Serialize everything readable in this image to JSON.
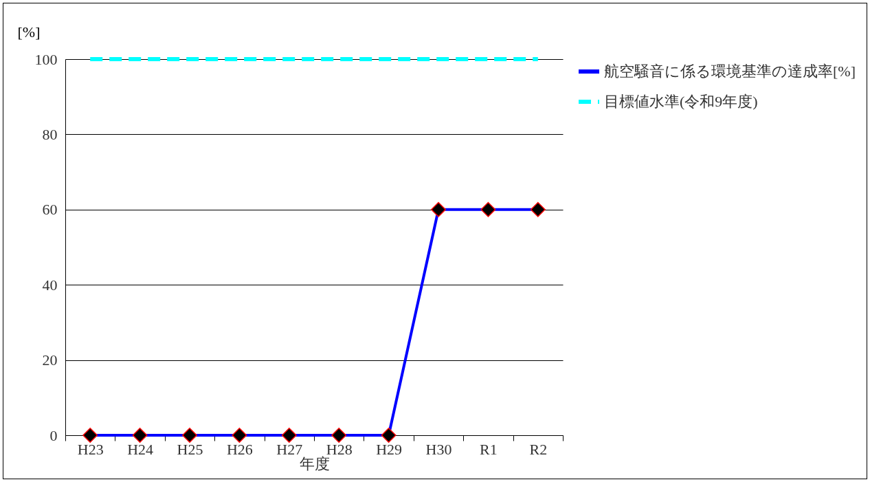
{
  "chart_data": {
    "type": "line",
    "xlabel": "年度",
    "ylabel": "[%]",
    "categories": [
      "H23",
      "H24",
      "H25",
      "H26",
      "H27",
      "H28",
      "H29",
      "H30",
      "R1",
      "R2"
    ],
    "series": [
      {
        "name": "航空騒音に係る環境基準の達成率[%]",
        "color": "#0000ff",
        "marker": "diamond",
        "line_style": "solid",
        "values": [
          0,
          0,
          0,
          0,
          0,
          0,
          0,
          60,
          60,
          60
        ]
      },
      {
        "name": "目標値水準(令和9年度)",
        "color": "#00ffff",
        "marker": "none",
        "line_style": "dashed",
        "values": [
          100,
          100,
          100,
          100,
          100,
          100,
          100,
          100,
          100,
          100
        ]
      }
    ],
    "ylim": [
      0,
      100
    ],
    "yticks": [
      0,
      20,
      40,
      60,
      80,
      100
    ],
    "grid": "y",
    "legend": "right"
  }
}
